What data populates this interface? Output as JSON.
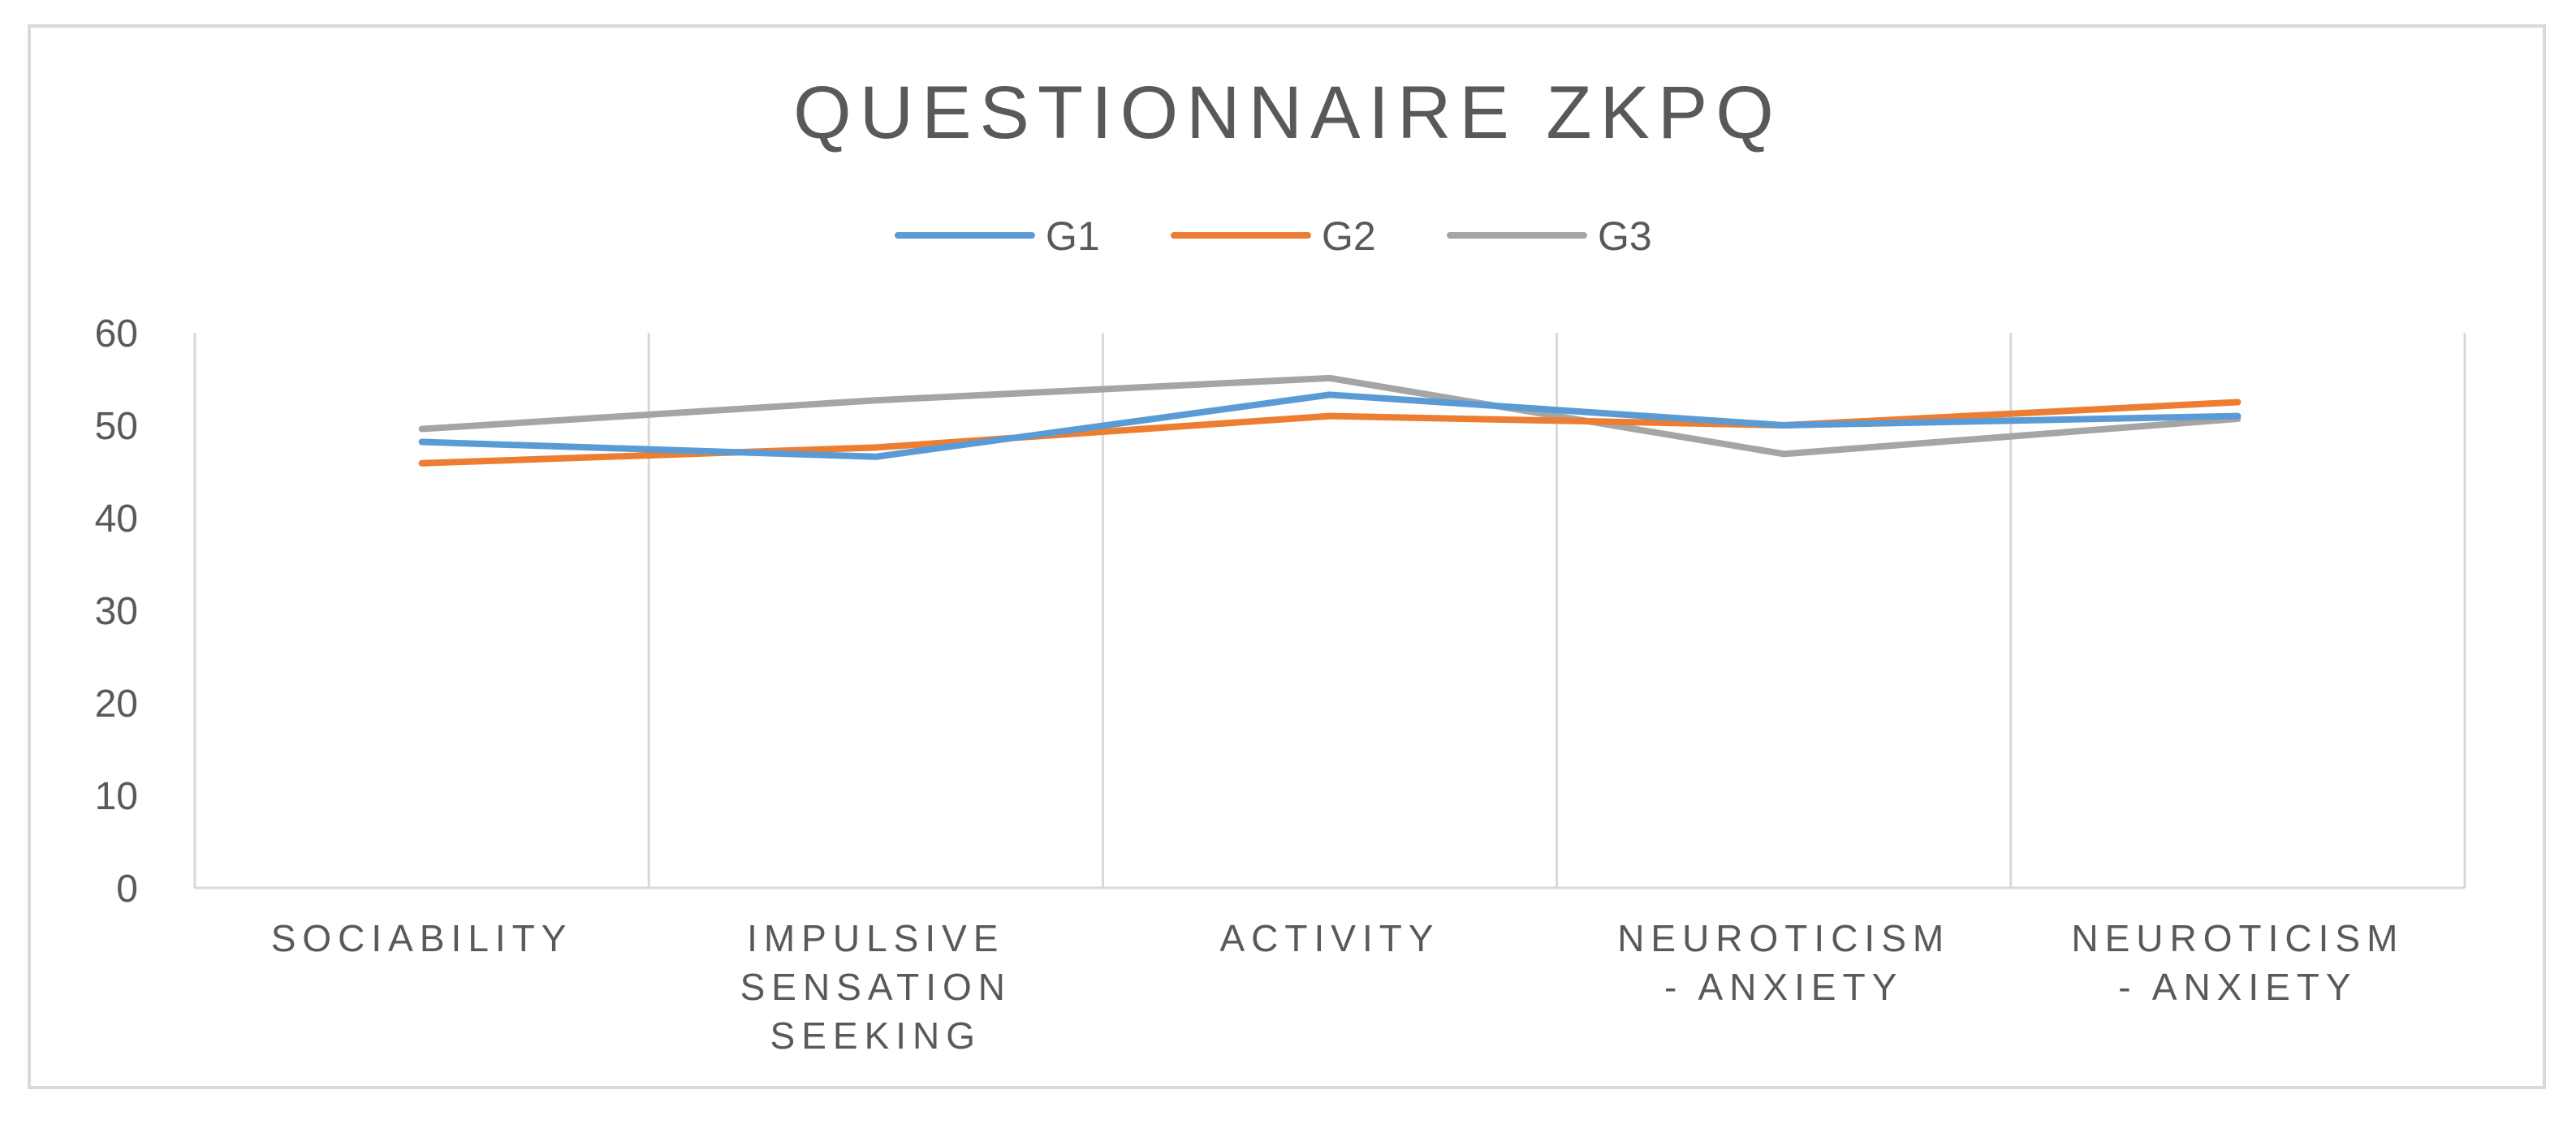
{
  "chart_data": {
    "type": "line",
    "title": "QUESTIONNAIRE ZKPQ",
    "categories": [
      [
        "SOCIABILITY"
      ],
      [
        "IMPULSIVE",
        "SENSATION",
        "SEEKING"
      ],
      [
        "ACTIVITY"
      ],
      [
        "NEUROTICISM",
        "- ANXIETY"
      ],
      [
        "NEUROTICISM",
        "- ANXIETY"
      ]
    ],
    "series": [
      {
        "name": "G1",
        "color": "#5b9bd5",
        "values": [
          48.2,
          46.6,
          53.3,
          50.0,
          51.0
        ]
      },
      {
        "name": "G2",
        "color": "#ed7d31",
        "values": [
          45.9,
          47.6,
          51.0,
          50.0,
          52.5
        ]
      },
      {
        "name": "G3",
        "color": "#a5a5a5",
        "values": [
          49.6,
          52.7,
          55.1,
          46.9,
          50.7
        ]
      }
    ],
    "yticks": [
      0,
      10,
      20,
      30,
      40,
      50,
      60
    ],
    "ylim": [
      0,
      60
    ],
    "xlabel": "",
    "ylabel": "",
    "grid": "vertical",
    "legend_position": "top",
    "gridline_color": "#d9d9d9"
  }
}
